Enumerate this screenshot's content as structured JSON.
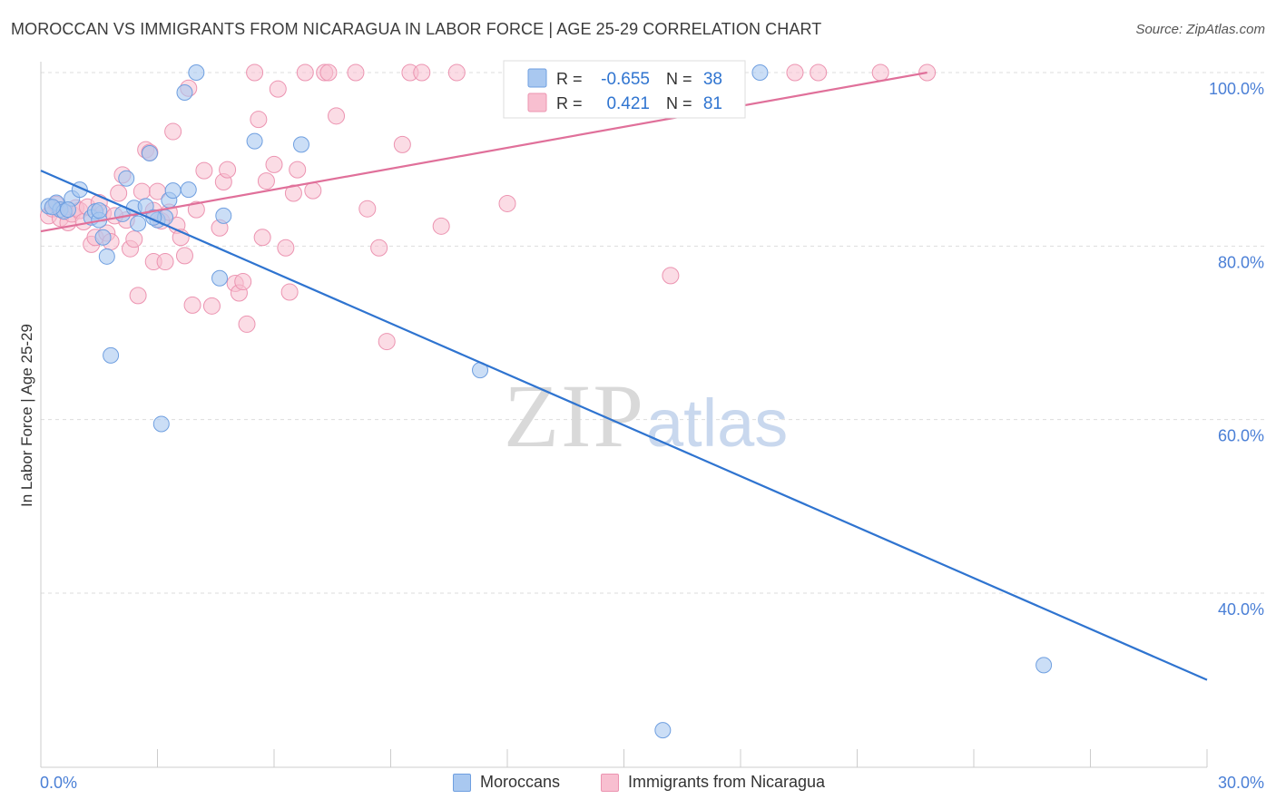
{
  "title": "MOROCCAN VS IMMIGRANTS FROM NICARAGUA IN LABOR FORCE | AGE 25-29 CORRELATION CHART",
  "source": "Source: ZipAtlas.com",
  "watermark": {
    "zip": "ZIP",
    "atlas": "atlas"
  },
  "colors": {
    "blue_fill": "#a9c8f0",
    "blue_stroke": "#6f9fe0",
    "blue_line": "#2f74d0",
    "pink_fill": "#f8bfd0",
    "pink_stroke": "#ec94b1",
    "pink_line": "#e0709a",
    "tick_label": "#4a7fd6",
    "grid": "#dddddd"
  },
  "legend_top": {
    "rows": [
      {
        "r_label": "R =",
        "r_value": "-0.655",
        "n_label": "N =",
        "n_value": "38",
        "series": "blue"
      },
      {
        "r_label": "R =",
        "r_value": "0.421",
        "n_label": "N =",
        "n_value": "81",
        "series": "pink"
      }
    ]
  },
  "legend_bottom": [
    {
      "label": "Moroccans",
      "series": "blue"
    },
    {
      "label": "Immigrants from Nicaragua",
      "series": "pink"
    }
  ],
  "chart_data": {
    "type": "scatter",
    "title": "MOROCCAN VS IMMIGRANTS FROM NICARAGUA IN LABOR FORCE | AGE 25-29 CORRELATION CHART",
    "xlabel": "",
    "ylabel": "In Labor Force | Age 25-29",
    "xlim": [
      0,
      30
    ],
    "ylim": [
      22,
      102
    ],
    "x_tick_labels": [
      "0.0%",
      "30.0%"
    ],
    "y_ticks": [
      40,
      60,
      80,
      100
    ],
    "y_tick_labels": [
      "40.0%",
      "60.0%",
      "80.0%",
      "100.0%"
    ],
    "grid": true,
    "legend_position": "top-center",
    "series": [
      {
        "name": "Moroccans",
        "r": -0.655,
        "n": 38,
        "trend": {
          "x": [
            0,
            30
          ],
          "y": [
            88.7,
            30.0
          ]
        },
        "points": [
          [
            0.2,
            84.6
          ],
          [
            0.4,
            85.0
          ],
          [
            0.5,
            84.2
          ],
          [
            0.6,
            84.0
          ],
          [
            0.8,
            85.5
          ],
          [
            1.0,
            86.5
          ],
          [
            1.3,
            83.3
          ],
          [
            1.4,
            84.0
          ],
          [
            1.5,
            83.0
          ],
          [
            1.6,
            81.0
          ],
          [
            1.7,
            78.8
          ],
          [
            1.8,
            67.4
          ],
          [
            2.1,
            83.7
          ],
          [
            2.2,
            87.8
          ],
          [
            2.4,
            84.4
          ],
          [
            2.5,
            82.6
          ],
          [
            2.7,
            84.6
          ],
          [
            2.8,
            90.7
          ],
          [
            3.0,
            83.0
          ],
          [
            3.1,
            59.5
          ],
          [
            3.2,
            83.3
          ],
          [
            3.3,
            85.3
          ],
          [
            3.4,
            86.4
          ],
          [
            3.7,
            97.7
          ],
          [
            3.8,
            86.5
          ],
          [
            4.0,
            100.0
          ],
          [
            4.6,
            76.3
          ],
          [
            4.7,
            83.5
          ],
          [
            5.5,
            92.1
          ],
          [
            6.7,
            91.7
          ],
          [
            11.3,
            65.7
          ],
          [
            16.0,
            24.2
          ],
          [
            18.5,
            100.0
          ],
          [
            25.8,
            31.7
          ],
          [
            0.3,
            84.5
          ],
          [
            0.7,
            84.2
          ],
          [
            1.5,
            84.1
          ],
          [
            2.9,
            83.3
          ]
        ]
      },
      {
        "name": "Immigrants from Nicaragua",
        "r": 0.421,
        "n": 81,
        "trend": {
          "x": [
            0,
            22.8
          ],
          "y": [
            81.7,
            100.0
          ]
        },
        "points": [
          [
            0.2,
            83.5
          ],
          [
            0.3,
            84.3
          ],
          [
            0.4,
            84.8
          ],
          [
            0.5,
            83.2
          ],
          [
            0.6,
            84.0
          ],
          [
            0.7,
            82.7
          ],
          [
            0.8,
            83.7
          ],
          [
            0.9,
            84.4
          ],
          [
            1.0,
            84.1
          ],
          [
            1.1,
            82.8
          ],
          [
            1.2,
            84.5
          ],
          [
            1.3,
            80.2
          ],
          [
            1.4,
            81.0
          ],
          [
            1.5,
            85.0
          ],
          [
            1.6,
            83.8
          ],
          [
            1.7,
            81.5
          ],
          [
            1.8,
            80.5
          ],
          [
            2.0,
            86.1
          ],
          [
            2.1,
            88.2
          ],
          [
            2.2,
            83.0
          ],
          [
            2.3,
            79.7
          ],
          [
            2.4,
            80.8
          ],
          [
            2.5,
            74.3
          ],
          [
            2.6,
            86.3
          ],
          [
            2.7,
            91.1
          ],
          [
            2.8,
            90.8
          ],
          [
            2.9,
            78.2
          ],
          [
            3.0,
            86.3
          ],
          [
            3.1,
            82.9
          ],
          [
            3.2,
            78.2
          ],
          [
            3.3,
            83.9
          ],
          [
            3.4,
            93.2
          ],
          [
            3.5,
            82.4
          ],
          [
            3.6,
            81.0
          ],
          [
            3.7,
            78.9
          ],
          [
            3.8,
            98.2
          ],
          [
            3.9,
            73.2
          ],
          [
            4.0,
            84.2
          ],
          [
            4.2,
            88.7
          ],
          [
            4.4,
            73.1
          ],
          [
            4.6,
            82.1
          ],
          [
            4.7,
            87.4
          ],
          [
            4.8,
            88.8
          ],
          [
            5.0,
            75.7
          ],
          [
            5.1,
            74.6
          ],
          [
            5.2,
            75.9
          ],
          [
            5.3,
            71.0
          ],
          [
            5.5,
            100.0
          ],
          [
            5.6,
            94.6
          ],
          [
            5.7,
            81.0
          ],
          [
            5.8,
            87.5
          ],
          [
            6.0,
            89.4
          ],
          [
            6.1,
            98.1
          ],
          [
            6.3,
            79.8
          ],
          [
            6.4,
            74.7
          ],
          [
            6.5,
            86.1
          ],
          [
            6.6,
            88.8
          ],
          [
            6.8,
            100.0
          ],
          [
            7.0,
            86.4
          ],
          [
            7.3,
            100.0
          ],
          [
            7.4,
            100.0
          ],
          [
            7.6,
            95.0
          ],
          [
            8.1,
            100.0
          ],
          [
            8.4,
            84.3
          ],
          [
            8.7,
            79.8
          ],
          [
            8.9,
            69.0
          ],
          [
            9.3,
            91.7
          ],
          [
            9.5,
            100.0
          ],
          [
            9.8,
            100.0
          ],
          [
            10.3,
            82.3
          ],
          [
            10.7,
            100.0
          ],
          [
            12.0,
            84.9
          ],
          [
            16.2,
            76.6
          ],
          [
            16.5,
            100.0
          ],
          [
            17.6,
            100.0
          ],
          [
            19.4,
            100.0
          ],
          [
            20.0,
            100.0
          ],
          [
            21.6,
            100.0
          ],
          [
            22.8,
            100.0
          ],
          [
            2.9,
            84.1
          ],
          [
            1.9,
            83.5
          ]
        ]
      }
    ]
  }
}
